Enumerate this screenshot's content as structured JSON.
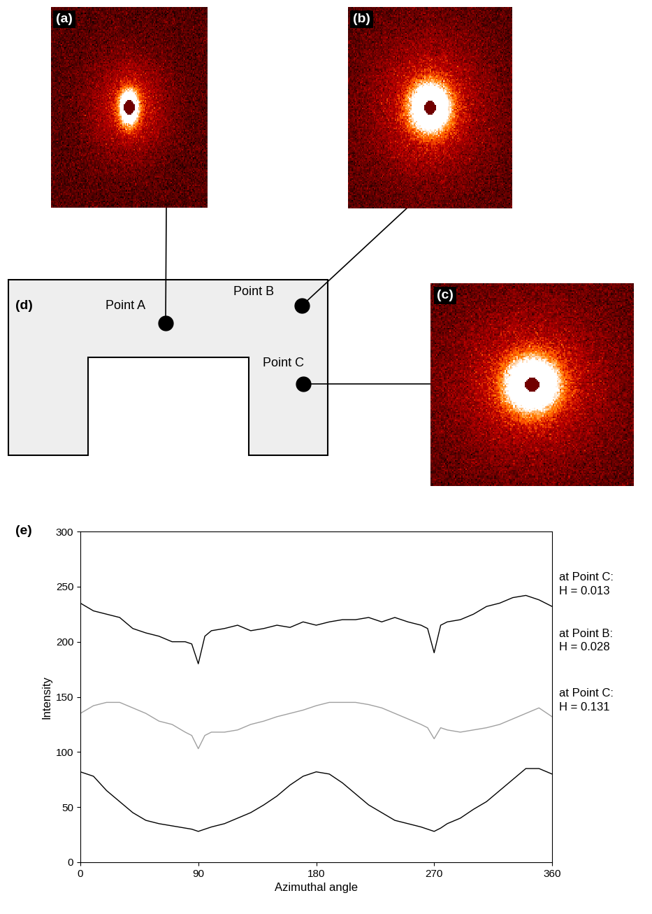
{
  "images": [
    {
      "label": "(a)"
    },
    {
      "label": "(b)"
    },
    {
      "label": "(c)"
    }
  ],
  "diagram": {
    "label": "(d)",
    "points": [
      "Point A",
      "Point B",
      "Point C"
    ]
  },
  "chart_data": {
    "type": "line",
    "panel_label": "(e)",
    "x_label": "Azimuthal angle",
    "y_label": "Intensity",
    "xlim": [
      0,
      360
    ],
    "ylim": [
      0,
      300
    ],
    "xticks": [
      0,
      90,
      180,
      270,
      360
    ],
    "yticks": [
      0,
      50,
      100,
      150,
      200,
      250,
      300
    ],
    "x": [
      0,
      10,
      20,
      30,
      40,
      50,
      60,
      70,
      80,
      85,
      90,
      95,
      100,
      110,
      120,
      130,
      140,
      150,
      160,
      170,
      180,
      190,
      200,
      210,
      220,
      230,
      240,
      250,
      260,
      265,
      270,
      275,
      280,
      290,
      300,
      310,
      320,
      330,
      340,
      350,
      360
    ],
    "series": [
      {
        "color": "#000000",
        "label_lines": [
          "at Point C:",
          "H = 0.013"
        ],
        "values": [
          235,
          228,
          225,
          222,
          212,
          208,
          205,
          200,
          200,
          198,
          180,
          205,
          210,
          212,
          215,
          210,
          212,
          215,
          213,
          218,
          215,
          218,
          220,
          220,
          222,
          218,
          222,
          218,
          215,
          212,
          190,
          215,
          218,
          220,
          225,
          232,
          235,
          240,
          242,
          238,
          232
        ]
      },
      {
        "color": "#a0a0a0",
        "label_lines": [
          "at Point B:",
          "H = 0.028"
        ],
        "values": [
          135,
          142,
          145,
          145,
          140,
          135,
          128,
          125,
          118,
          115,
          103,
          115,
          118,
          118,
          120,
          125,
          128,
          132,
          135,
          138,
          142,
          145,
          145,
          145,
          143,
          140,
          135,
          130,
          125,
          122,
          112,
          122,
          120,
          118,
          120,
          122,
          125,
          130,
          135,
          140,
          132
        ]
      },
      {
        "color": "#000000",
        "label_lines": [
          "at Point C:",
          "H = 0.131"
        ],
        "values": [
          82,
          78,
          65,
          55,
          45,
          38,
          35,
          33,
          31,
          30,
          28,
          30,
          32,
          35,
          40,
          45,
          52,
          60,
          70,
          78,
          82,
          80,
          72,
          62,
          52,
          45,
          38,
          35,
          32,
          30,
          28,
          31,
          35,
          40,
          48,
          55,
          65,
          75,
          85,
          85,
          80
        ]
      }
    ]
  }
}
